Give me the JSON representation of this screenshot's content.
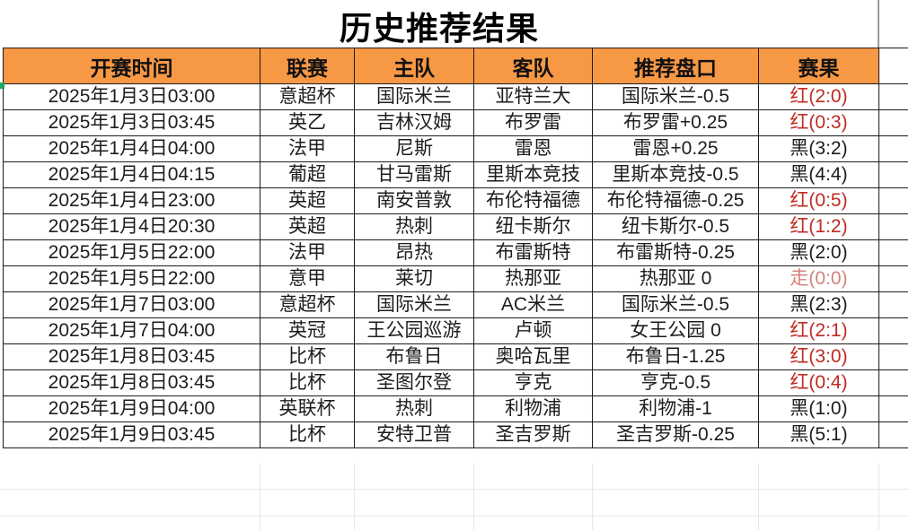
{
  "title": "历史推荐结果",
  "colors": {
    "header_bg": "#f79845",
    "win_color": "#bf2b23",
    "loss_color": "#1d1d1d",
    "push_color": "#d4837b",
    "border_color": "#1c1c1c"
  },
  "table": {
    "columns": [
      {
        "key": "time",
        "label": "开赛时间"
      },
      {
        "key": "league",
        "label": "联赛"
      },
      {
        "key": "home",
        "label": "主队"
      },
      {
        "key": "away",
        "label": "客队"
      },
      {
        "key": "handicap",
        "label": "推荐盘口"
      },
      {
        "key": "result",
        "label": "赛果"
      }
    ],
    "rows": [
      {
        "time": "2025年1月3日03:00",
        "league": "意超杯",
        "home": "国际米兰",
        "away": "亚特兰大",
        "handicap": "国际米兰-0.5",
        "result": "红(2:0)",
        "result_type": "win"
      },
      {
        "time": "2025年1月3日03:45",
        "league": "英乙",
        "home": "吉林汉姆",
        "away": "布罗雷",
        "handicap": "布罗雷+0.25",
        "result": "红(0:3)",
        "result_type": "win"
      },
      {
        "time": "2025年1月4日04:00",
        "league": "法甲",
        "home": "尼斯",
        "away": "雷恩",
        "handicap": "雷恩+0.25",
        "result": "黑(3:2)",
        "result_type": "loss"
      },
      {
        "time": "2025年1月4日04:15",
        "league": "葡超",
        "home": "甘马雷斯",
        "away": "里斯本竞技",
        "handicap": "里斯本竞技-0.5",
        "result": "黑(4:4)",
        "result_type": "loss"
      },
      {
        "time": "2025年1月4日23:00",
        "league": "英超",
        "home": "南安普敦",
        "away": "布伦特福德",
        "handicap": "布伦特福德-0.25",
        "result": "红(0:5)",
        "result_type": "win"
      },
      {
        "time": "2025年1月4日20:30",
        "league": "英超",
        "home": "热刺",
        "away": "纽卡斯尔",
        "handicap": "纽卡斯尔-0.5",
        "result": "红(1:2)",
        "result_type": "win"
      },
      {
        "time": "2025年1月5日22:00",
        "league": "法甲",
        "home": "昂热",
        "away": "布雷斯特",
        "handicap": "布雷斯特-0.25",
        "result": "黑(2:0)",
        "result_type": "loss"
      },
      {
        "time": "2025年1月5日22:00",
        "league": "意甲",
        "home": "莱切",
        "away": "热那亚",
        "handicap": "热那亚 0",
        "result": "走(0:0)",
        "result_type": "push"
      },
      {
        "time": "2025年1月7日03:00",
        "league": "意超杯",
        "home": "国际米兰",
        "away": "AC米兰",
        "handicap": "国际米兰-0.5",
        "result": "黑(2:3)",
        "result_type": "loss"
      },
      {
        "time": "2025年1月7日04:00",
        "league": "英冠",
        "home": "王公园巡游",
        "away": "卢顿",
        "handicap": "女王公园 0",
        "result": "红(2:1)",
        "result_type": "win"
      },
      {
        "time": "2025年1月8日03:45",
        "league": "比杯",
        "home": "布鲁日",
        "away": "奥哈瓦里",
        "handicap": "布鲁日-1.25",
        "result": "红(3:0)",
        "result_type": "win"
      },
      {
        "time": "2025年1月8日03:45",
        "league": "比杯",
        "home": "圣图尔登",
        "away": "亨克",
        "handicap": "亨克-0.5",
        "result": "红(0:4)",
        "result_type": "win"
      },
      {
        "time": "2025年1月9日04:00",
        "league": "英联杯",
        "home": "热刺",
        "away": "利物浦",
        "handicap": "利物浦-1",
        "result": "黑(1:0)",
        "result_type": "loss"
      },
      {
        "time": "2025年1月9日03:45",
        "league": "比杯",
        "home": "安特卫普",
        "away": "圣吉罗斯",
        "handicap": "圣吉罗斯-0.25",
        "result": "黑(5:1)",
        "result_type": "loss"
      }
    ]
  }
}
